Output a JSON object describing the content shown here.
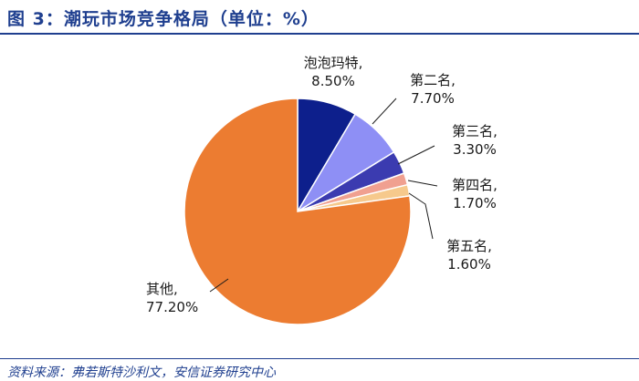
{
  "title": "图 3：潮玩市场竞争格局（单位：%）",
  "source": "资料来源：弗若斯特沙利文，安信证券研究中心",
  "chart_data": {
    "type": "pie",
    "start_angle_deg": 90,
    "direction": "clockwise",
    "slices": [
      {
        "name": "泡泡玛特,",
        "value": 8.5,
        "label": "8.50%",
        "color": "#0d1f8c"
      },
      {
        "name": "第二名,",
        "value": 7.7,
        "label": "7.70%",
        "color": "#8e8ff5"
      },
      {
        "name": "第三名,",
        "value": 3.3,
        "label": "3.30%",
        "color": "#3b3bb0"
      },
      {
        "name": "第四名,",
        "value": 1.7,
        "label": "1.70%",
        "color": "#f0a090"
      },
      {
        "name": "第五名,",
        "value": 1.6,
        "label": "1.60%",
        "color": "#f6c98c"
      },
      {
        "name": "其他,",
        "value": 77.2,
        "label": "77.20%",
        "color": "#ec7c31"
      }
    ]
  }
}
